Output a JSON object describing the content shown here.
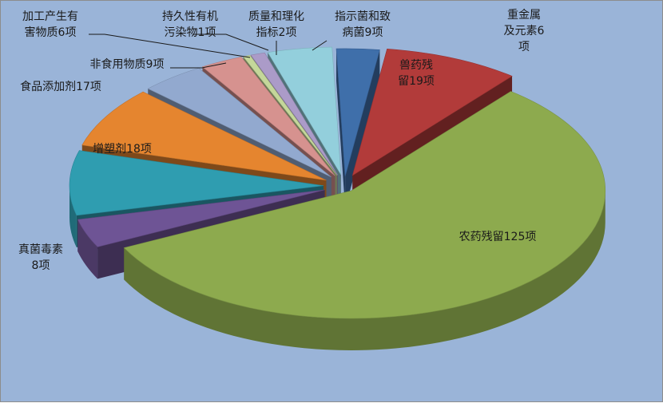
{
  "chart_data": {
    "type": "pie",
    "style": "exploded-3d",
    "background_color": "#9ab4d8",
    "slices": [
      {
        "category": "重金属及元素",
        "value": 6,
        "label_lines": [
          "重金属",
          "及元素6",
          "项"
        ],
        "color": "#3f6faa"
      },
      {
        "category": "兽药残留",
        "value": 19,
        "label_lines": [
          "兽药残",
          "留19项"
        ],
        "color": "#b23b3a"
      },
      {
        "category": "农药残留",
        "value": 125,
        "label_lines": [
          "农药残留125项"
        ],
        "color": "#8daa4e"
      },
      {
        "category": "真菌毒素",
        "value": 8,
        "label_lines": [
          "真菌毒素",
          "8项"
        ],
        "color": "#6e5495"
      },
      {
        "category": "增塑剂",
        "value": 18,
        "label_lines": [
          "增塑剂18项"
        ],
        "color": "#2f9db0"
      },
      {
        "category": "食品添加剂",
        "value": 17,
        "label_lines": [
          "食品添加剂17项"
        ],
        "color": "#e5852f"
      },
      {
        "category": "非食用物质",
        "value": 9,
        "label_lines": [
          "非食用物质9项"
        ],
        "color": "#92a9cf"
      },
      {
        "category": "加工产生有害物质",
        "value": 6,
        "label_lines": [
          "加工产生有",
          "害物质6项"
        ],
        "color": "#d6928f"
      },
      {
        "category": "持久性有机污染物",
        "value": 1,
        "label_lines": [
          "持久性有机",
          "污染物1项"
        ],
        "color": "#c4d79a"
      },
      {
        "category": "质量和理化指标",
        "value": 2,
        "label_lines": [
          "质量和理化",
          "指标2项"
        ],
        "color": "#ab9bc8"
      },
      {
        "category": "指示菌和致病菌",
        "value": 9,
        "label_lines": [
          "指示菌和致",
          "病菌9项"
        ],
        "color": "#93cfdc"
      }
    ]
  }
}
